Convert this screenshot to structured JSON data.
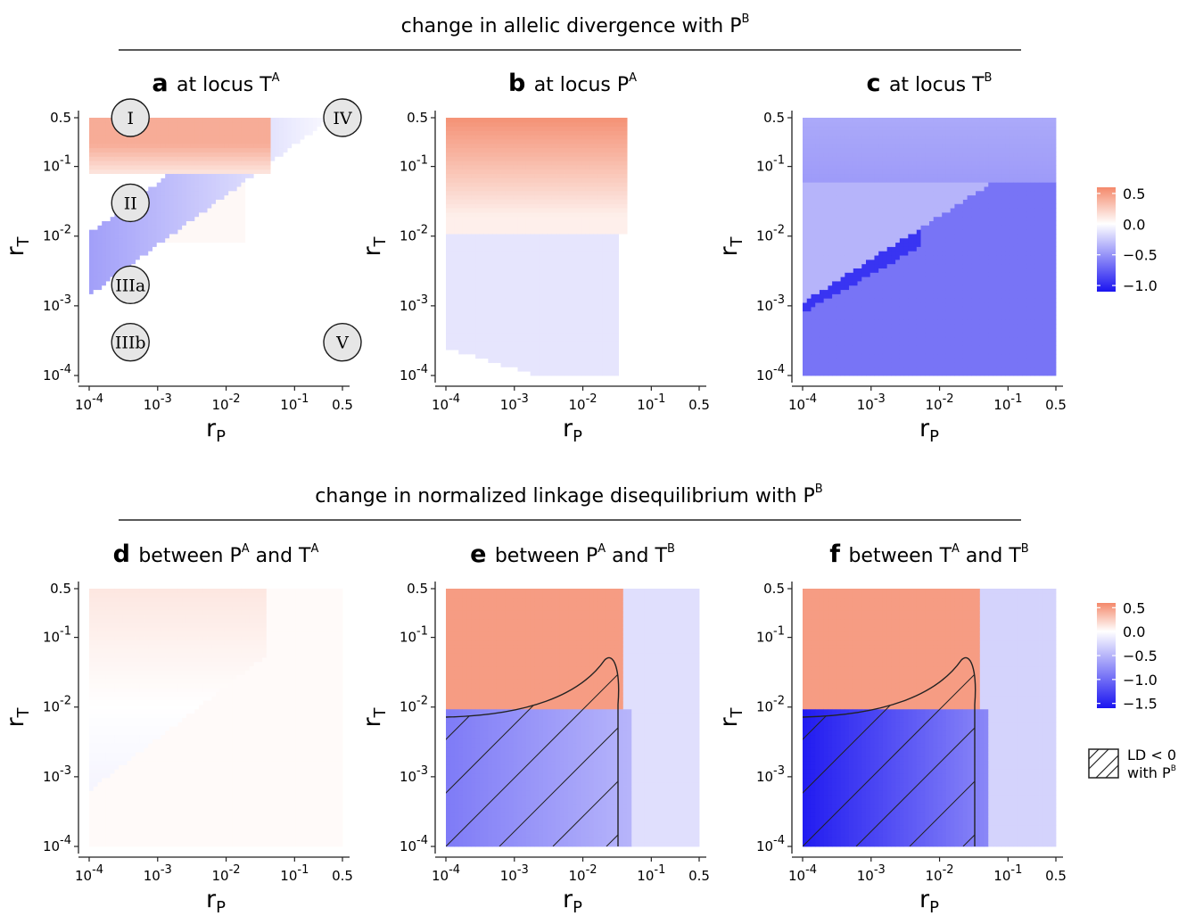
{
  "section_titles": {
    "top": "change in allelic divergence with P",
    "top_sup": "B",
    "bottom": "change in normalized linkage disequilibrium with P",
    "bottom_sup": "B"
  },
  "axes": {
    "xlabel": "r",
    "xlabel_sub": "P",
    "ylabel": "r",
    "ylabel_sub": "T",
    "ticks": [
      {
        "base": "10",
        "exp": "-4",
        "value": 0.0001
      },
      {
        "base": "10",
        "exp": "-3",
        "value": 0.001
      },
      {
        "base": "10",
        "exp": "-2",
        "value": 0.01
      },
      {
        "base": "10",
        "exp": "-1",
        "value": 0.1
      },
      {
        "base": "0.5",
        "exp": "",
        "value": 0.5
      }
    ],
    "scale": "log10",
    "range": [
      0.0001,
      0.5
    ]
  },
  "panels": [
    {
      "letter": "a",
      "pre": "at locus T",
      "sup": "A",
      "mid": "",
      "sup2": ""
    },
    {
      "letter": "b",
      "pre": "at locus P",
      "sup": "A",
      "mid": "",
      "sup2": ""
    },
    {
      "letter": "c",
      "pre": "at locus T",
      "sup": "B",
      "mid": "",
      "sup2": ""
    },
    {
      "letter": "d",
      "pre": "between P",
      "sup": "A",
      "mid": "and T",
      "sup2": "A"
    },
    {
      "letter": "e",
      "pre": "between P",
      "sup": "A",
      "mid": "and T",
      "sup2": "B"
    },
    {
      "letter": "f",
      "pre": "between T",
      "sup": "A",
      "mid": "and T",
      "sup2": "B"
    }
  ],
  "region_markers": [
    {
      "label": "I",
      "rP": 0.0004,
      "rT": 0.5
    },
    {
      "label": "II",
      "rP": 0.0004,
      "rT": 0.03
    },
    {
      "label": "IIIa",
      "rP": 0.0004,
      "rT": 0.002
    },
    {
      "label": "IIIb",
      "rP": 0.0004,
      "rT": 0.0003
    },
    {
      "label": "IV",
      "rP": 0.5,
      "rT": 0.5
    },
    {
      "label": "V",
      "rP": 0.5,
      "rT": 0.0003
    }
  ],
  "legends": {
    "top": {
      "ticks": [
        "0.5",
        "0.0",
        "−0.5",
        "−1.0"
      ],
      "values": [
        0.5,
        0,
        -0.5,
        -1.0
      ],
      "min": -1.1,
      "max": 0.6
    },
    "bottom": {
      "ticks": [
        "0.5",
        "0.0",
        "−0.5",
        "−1.0",
        "−1.5"
      ],
      "values": [
        0.5,
        0,
        -0.5,
        -1.0,
        -1.5
      ],
      "min": -1.6,
      "max": 0.6
    },
    "hatch_key_line1": "LD < 0",
    "hatch_key_line2": "with P",
    "hatch_key_sup": "B"
  },
  "colors": {
    "positive": "#f4896b",
    "zero": "#ffffff",
    "negative": "#1a14f0"
  },
  "chart_data": [
    {
      "type": "heatmap",
      "panel": "a",
      "title": "at locus T^A",
      "xlabel": "r_P",
      "ylabel": "r_T",
      "x_range": [
        0.0001,
        0.5
      ],
      "y_range": [
        0.0001,
        0.5
      ],
      "x_scale": "log10",
      "y_scale": "log10",
      "value_range": [
        -1.0,
        0.5
      ],
      "description_values": {
        "high_rT_low_rP": 0.35,
        "band_rT_1e-2_to_1e-3_low_rP": -0.45,
        "low_rT": 0.0
      }
    },
    {
      "type": "heatmap",
      "panel": "b",
      "title": "at locus P^A",
      "xlabel": "r_P",
      "ylabel": "r_T",
      "x_range": [
        0.0001,
        0.5
      ],
      "y_range": [
        0.0001,
        0.5
      ],
      "x_scale": "log10",
      "y_scale": "log10",
      "value_range": [
        -1.0,
        0.5
      ],
      "description_values": {
        "high_rT_low_rP": 0.45,
        "low_rT_low_rP": -0.15,
        "low_rT": 0.0
      }
    },
    {
      "type": "heatmap",
      "panel": "c",
      "title": "at locus T^B",
      "xlabel": "r_P",
      "ylabel": "r_T",
      "x_range": [
        0.0001,
        0.5
      ],
      "y_range": [
        0.0001,
        0.5
      ],
      "x_scale": "log10",
      "y_scale": "log10",
      "value_range": [
        -1.0,
        0.5
      ],
      "description_values": {
        "top": -0.1,
        "band_low_rP": -0.95,
        "background": -0.6
      }
    },
    {
      "type": "heatmap",
      "panel": "d",
      "title": "between P^A and T^A",
      "xlabel": "r_P",
      "ylabel": "r_T",
      "x_range": [
        0.0001,
        0.5
      ],
      "y_range": [
        0.0001,
        0.5
      ],
      "x_scale": "log10",
      "y_scale": "log10",
      "value_range": [
        -1.5,
        0.5
      ],
      "description_values": {
        "high_rT_low_rP": 0.12,
        "elsewhere": 0.0
      }
    },
    {
      "type": "heatmap",
      "panel": "e",
      "title": "between P^A and T^B",
      "xlabel": "r_P",
      "ylabel": "r_T",
      "x_range": [
        0.0001,
        0.5
      ],
      "y_range": [
        0.0001,
        0.5
      ],
      "x_scale": "log10",
      "y_scale": "log10",
      "value_range": [
        -1.5,
        0.5
      ],
      "description_values": {
        "high_rT_low_rP": 0.42,
        "low_rT_low_rP": -0.85,
        "background": -0.25
      },
      "hatched_region": "LD < 0 with P^B"
    },
    {
      "type": "heatmap",
      "panel": "f",
      "title": "between T^A and T^B",
      "xlabel": "r_P",
      "ylabel": "r_T",
      "x_range": [
        0.0001,
        0.5
      ],
      "y_range": [
        0.0001,
        0.5
      ],
      "x_scale": "log10",
      "y_scale": "log10",
      "value_range": [
        -1.5,
        0.5
      ],
      "description_values": {
        "high_rT_low_rP": 0.42,
        "low_rT_low_rP": -1.55,
        "background": -0.35
      },
      "hatched_region": "LD < 0 with P^B"
    }
  ]
}
